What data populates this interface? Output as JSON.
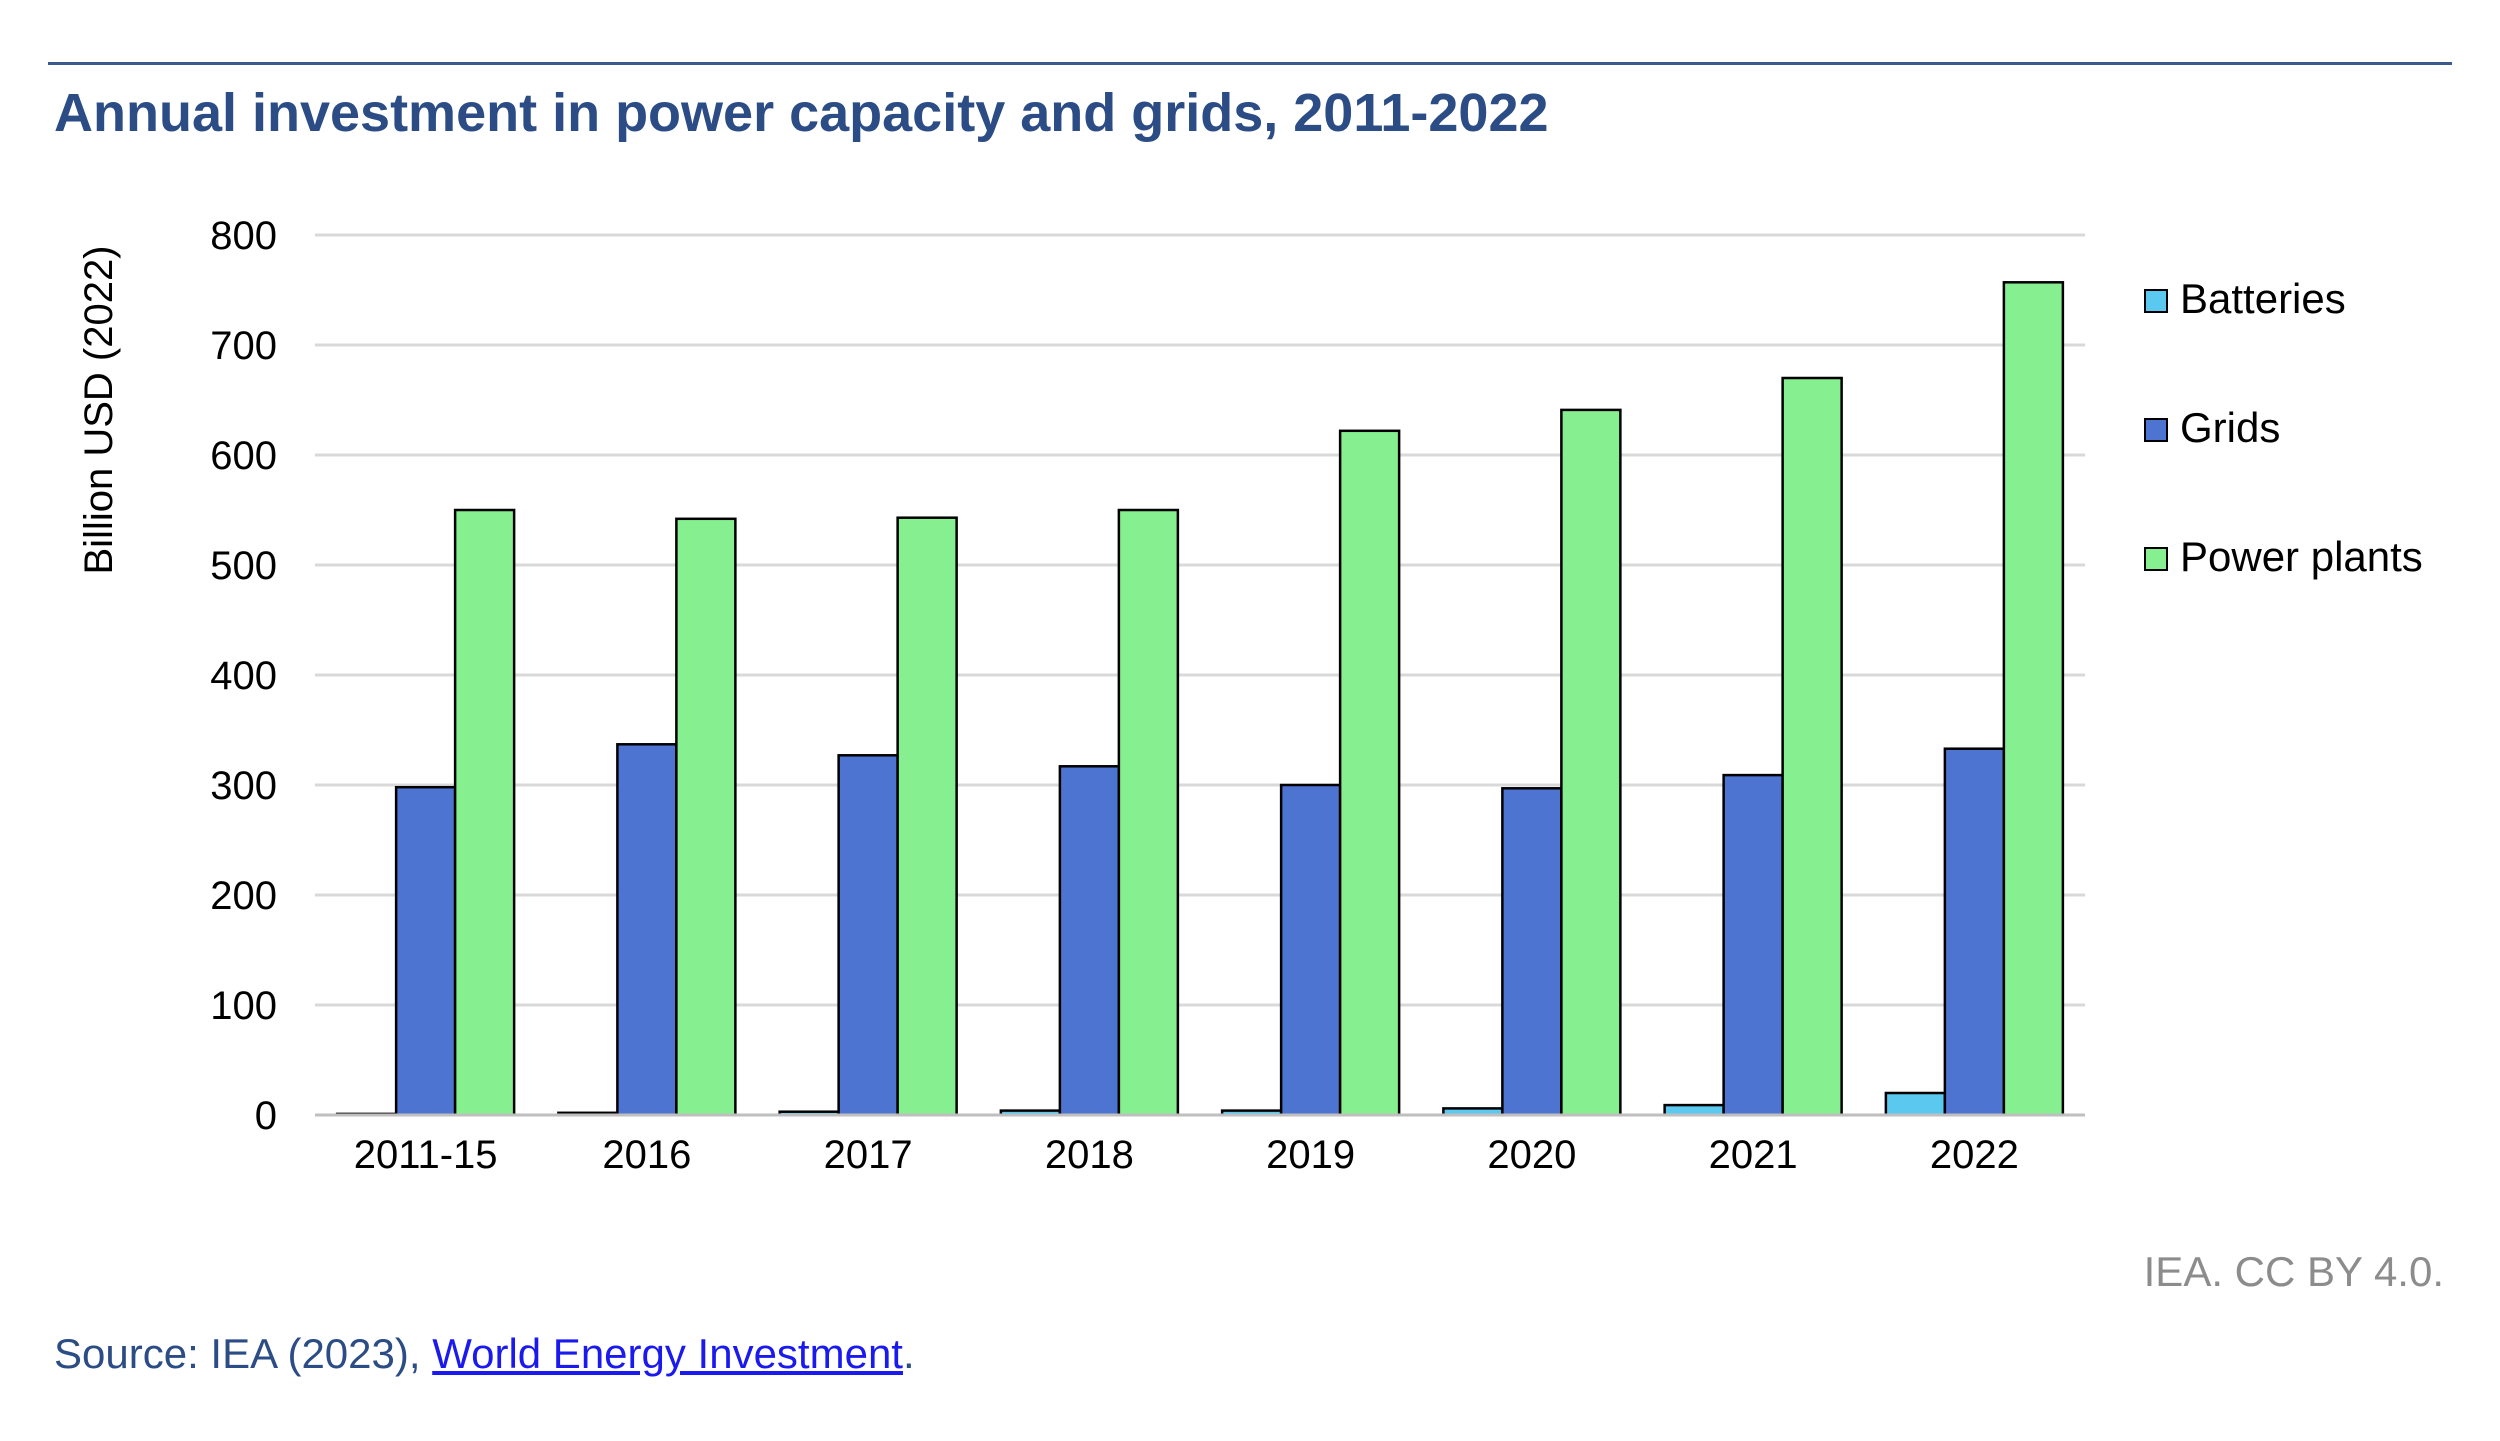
{
  "title": "Annual investment in power capacity and grids, 2011-2022",
  "credit": "IEA. CC BY 4.0.",
  "source": {
    "prefix": "Source: IEA (2023), ",
    "link_text": "World Energy Investment",
    "suffix": "."
  },
  "colors": {
    "title": "#2b4c85",
    "batteries": "#5bc8f0",
    "grids": "#4e74d2",
    "power_plants": "#86ef90",
    "gridline": "#d9d9d9"
  },
  "chart_data": {
    "type": "bar",
    "title": "Annual investment in power capacity and grids, 2011-2022",
    "xlabel": "",
    "ylabel": "Billion USD (2022)",
    "ylim": [
      0,
      800
    ],
    "yticks": [
      0,
      100,
      200,
      300,
      400,
      500,
      600,
      700,
      800
    ],
    "grid": true,
    "legend_position": "right",
    "categories": [
      "2011-15",
      "2016",
      "2017",
      "2018",
      "2019",
      "2020",
      "2021",
      "2022"
    ],
    "series": [
      {
        "name": "Batteries",
        "color": "#5bc8f0",
        "values": [
          1,
          2,
          3,
          4,
          4,
          6,
          9,
          20
        ]
      },
      {
        "name": "Grids",
        "color": "#4e74d2",
        "values": [
          298,
          337,
          327,
          317,
          300,
          297,
          309,
          333
        ]
      },
      {
        "name": "Power plants",
        "color": "#86ef90",
        "values": [
          550,
          542,
          543,
          550,
          622,
          641,
          670,
          757
        ]
      }
    ]
  }
}
